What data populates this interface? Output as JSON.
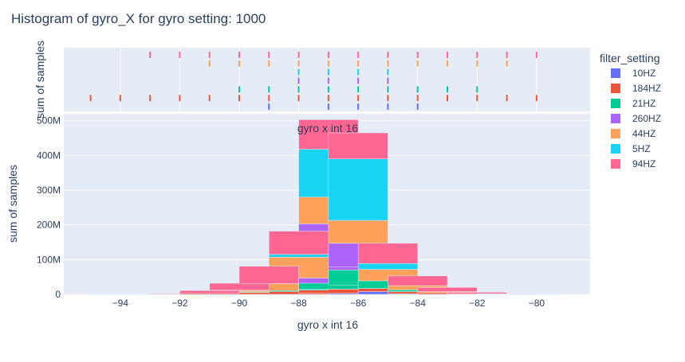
{
  "chart_data": {
    "type": "bar",
    "stacked": true,
    "title": "Histogram of gyro_X for gyro setting: 1000",
    "xlabel": "gyro x int 16",
    "ylabel": "sum of samples",
    "rug_ylabel": "sum of samples",
    "annotation": "gyro x int 16",
    "legend_title": "filter_setting",
    "legend_position": "right",
    "grid": true,
    "xlim": [
      -95.9,
      -78.2
    ],
    "ylim": [
      0,
      520
    ],
    "y_unit": "M",
    "bin_width": 2,
    "x_ticks": [
      -94,
      -92,
      -90,
      -88,
      -86,
      -84,
      -82,
      -80
    ],
    "x_tick_labels": [
      "−94",
      "−92",
      "−90",
      "−88",
      "−86",
      "−84",
      "−82",
      "−80"
    ],
    "y_ticks": [
      0,
      100,
      200,
      300,
      400,
      500
    ],
    "y_tick_labels": [
      "0",
      "100M",
      "200M",
      "300M",
      "400M",
      "500M"
    ],
    "bins": [
      -95,
      -94,
      -93,
      -92,
      -91,
      -90,
      -89,
      -88,
      -87,
      -86,
      -85,
      -84,
      -83,
      -82,
      -81,
      -80
    ],
    "series": [
      {
        "name": "10HZ",
        "color": "#636efa",
        "values": [
          0,
          0,
          0,
          0,
          0,
          0,
          0,
          0,
          3,
          15,
          8,
          2,
          0,
          0,
          0,
          0
        ],
        "rug": [
          -89,
          -87,
          -86,
          -85,
          -84
        ]
      },
      {
        "name": "184HZ",
        "color": "#ef553b",
        "values": [
          0.3,
          0.5,
          0.8,
          1.5,
          3,
          5,
          8,
          12,
          12,
          12,
          9,
          6,
          4,
          2,
          1,
          0.5
        ],
        "rug": [
          -95,
          -94,
          -93,
          -92,
          -91,
          -90,
          -89,
          -88,
          -87,
          -86,
          -85,
          -84,
          -83,
          -82,
          -81,
          -80
        ]
      },
      {
        "name": "21HZ",
        "color": "#00cc96",
        "values": [
          0,
          0,
          0,
          0,
          0,
          2,
          3,
          20,
          55,
          52,
          22,
          5,
          0,
          0,
          0,
          0
        ],
        "rug": [
          -90,
          -89,
          -88,
          -87,
          -86,
          -85,
          -84,
          -83,
          -82
        ]
      },
      {
        "name": "260HZ",
        "color": "#ab63fa",
        "values": [
          0,
          0,
          0,
          0,
          0,
          0,
          0,
          15,
          133,
          68,
          0,
          0,
          0,
          0,
          0,
          0
        ],
        "rug": [
          -88,
          -87,
          -86,
          -85
        ]
      },
      {
        "name": "44HZ",
        "color": "#ffa15a",
        "values": [
          0,
          0,
          0,
          0,
          0,
          5,
          20,
          60,
          77,
          66,
          33,
          12,
          4,
          0,
          0,
          0
        ],
        "rug": [
          -91,
          -90,
          -89,
          -88,
          -87,
          -86,
          -85,
          -84,
          -83,
          -82,
          -81
        ]
      },
      {
        "name": "5HZ",
        "color": "#19d3f3",
        "values": [
          0,
          0,
          0,
          0,
          0,
          0,
          0,
          8,
          138,
          177,
          17,
          0,
          0,
          0,
          0,
          0
        ],
        "rug": [
          -88,
          -87,
          -86,
          -85
        ]
      },
      {
        "name": "94HZ",
        "color": "#ff6692",
        "values": [
          0,
          0,
          0,
          0,
          8,
          20,
          50,
          67,
          85,
          75,
          58,
          28,
          12,
          4,
          1,
          0
        ],
        "rug": [
          -93,
          -92,
          -91,
          -90,
          -89,
          -88,
          -87,
          -86,
          -85,
          -84,
          -83,
          -82,
          -81,
          -80
        ]
      }
    ]
  }
}
